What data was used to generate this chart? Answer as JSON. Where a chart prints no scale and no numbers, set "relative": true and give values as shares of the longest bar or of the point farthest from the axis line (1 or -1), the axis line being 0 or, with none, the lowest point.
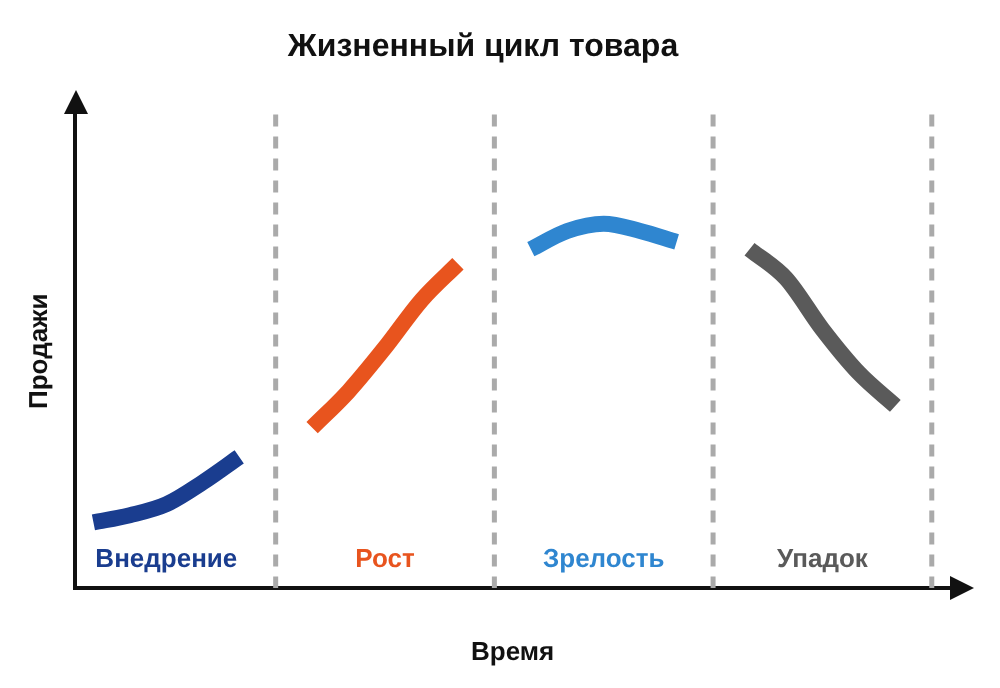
{
  "chart_data": {
    "type": "line",
    "title": "Жизненный цикл товара",
    "xlabel": "Время",
    "ylabel": "Продажи",
    "relative": true,
    "grid": "x",
    "legend": false,
    "marker": "none",
    "line_style": "solid",
    "categories": [
      null,
      null,
      null,
      null,
      null,
      null,
      null,
      null,
      null,
      null,
      null,
      null,
      null,
      null,
      null,
      null,
      null,
      null,
      null,
      null,
      null,
      null,
      null,
      null
    ],
    "series": [
      {
        "name": "Внедрение",
        "color": "#1a3d8f",
        "values": [
          0.18,
          0.2,
          0.23,
          0.29,
          0.36,
          null,
          null,
          null,
          null,
          null,
          null,
          null,
          null,
          null,
          null,
          null,
          null,
          null,
          null,
          null,
          null,
          null,
          null,
          null
        ]
      },
      {
        "name": "Рост",
        "color": "#e8541e",
        "values": [
          null,
          null,
          null,
          null,
          null,
          null,
          0.44,
          0.54,
          0.66,
          0.79,
          0.89,
          null,
          null,
          null,
          null,
          null,
          null,
          null,
          null,
          null,
          null,
          null,
          null,
          null
        ]
      },
      {
        "name": "Зрелость",
        "color": "#2f86d0",
        "values": [
          null,
          null,
          null,
          null,
          null,
          null,
          null,
          null,
          null,
          null,
          null,
          null,
          0.93,
          0.98,
          1,
          0.98,
          0.95,
          null,
          null,
          null,
          null,
          null,
          null,
          null
        ]
      },
      {
        "name": "Упадок",
        "color": "#5a5a5a",
        "values": [
          null,
          null,
          null,
          null,
          null,
          null,
          null,
          null,
          null,
          null,
          null,
          null,
          null,
          null,
          null,
          null,
          null,
          null,
          0.93,
          0.85,
          0.71,
          0.59,
          0.5,
          null
        ]
      }
    ]
  }
}
